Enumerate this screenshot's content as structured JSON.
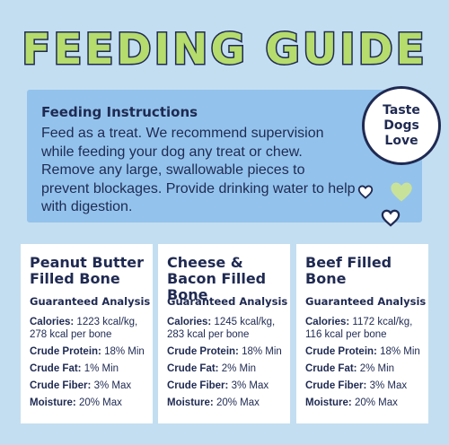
{
  "title": "FEEDING GUIDE",
  "instructions": {
    "heading": "Feeding Instructions",
    "text": "Feed as a treat. We recommend supervision while feeding your dog any treat or chew. Remove any large, swallowable pieces to prevent blockages. Provide drinking water to help with digestion."
  },
  "badge": {
    "line1": "Taste",
    "line2": "Dogs",
    "line3": "Love"
  },
  "colors": {
    "background": "#c4def1",
    "instructions_box": "#93c3ec",
    "navy": "#1f2a52",
    "title_green": "#b5dc6c"
  },
  "cards": [
    {
      "title": "Peanut Butter Filled Bone",
      "analysis_label": "Guaranteed Analysis",
      "calories_label": "Calories:",
      "calories_value": "1223 kcal/kg, 278 kcal per bone",
      "protein_label": "Crude Protein:",
      "protein_value": "18% Min",
      "fat_label": "Crude Fat:",
      "fat_value": "1% Min",
      "fiber_label": "Crude Fiber:",
      "fiber_value": "3% Max",
      "moisture_label": "Moisture:",
      "moisture_value": "20% Max"
    },
    {
      "title": "Cheese & Bacon Filled Bone",
      "analysis_label": "Guaranteed Analysis",
      "calories_label": "Calories:",
      "calories_value": "1245 kcal/kg, 283 kcal per bone",
      "protein_label": "Crude Protein:",
      "protein_value": "18% Min",
      "fat_label": "Crude Fat:",
      "fat_value": "2% Min",
      "fiber_label": "Crude Fiber:",
      "fiber_value": "3% Max",
      "moisture_label": "Moisture:",
      "moisture_value": "20% Max"
    },
    {
      "title": "Beef Filled Bone",
      "analysis_label": "Guaranteed Analysis",
      "calories_label": "Calories:",
      "calories_value": "1172 kcal/kg, 116 kcal per bone",
      "protein_label": "Crude Protein:",
      "protein_value": "18% Min",
      "fat_label": "Crude Fat:",
      "fat_value": "2% Min",
      "fiber_label": "Crude Fiber:",
      "fiber_value": "3% Max",
      "moisture_label": "Moisture:",
      "moisture_value": "20% Max"
    }
  ]
}
